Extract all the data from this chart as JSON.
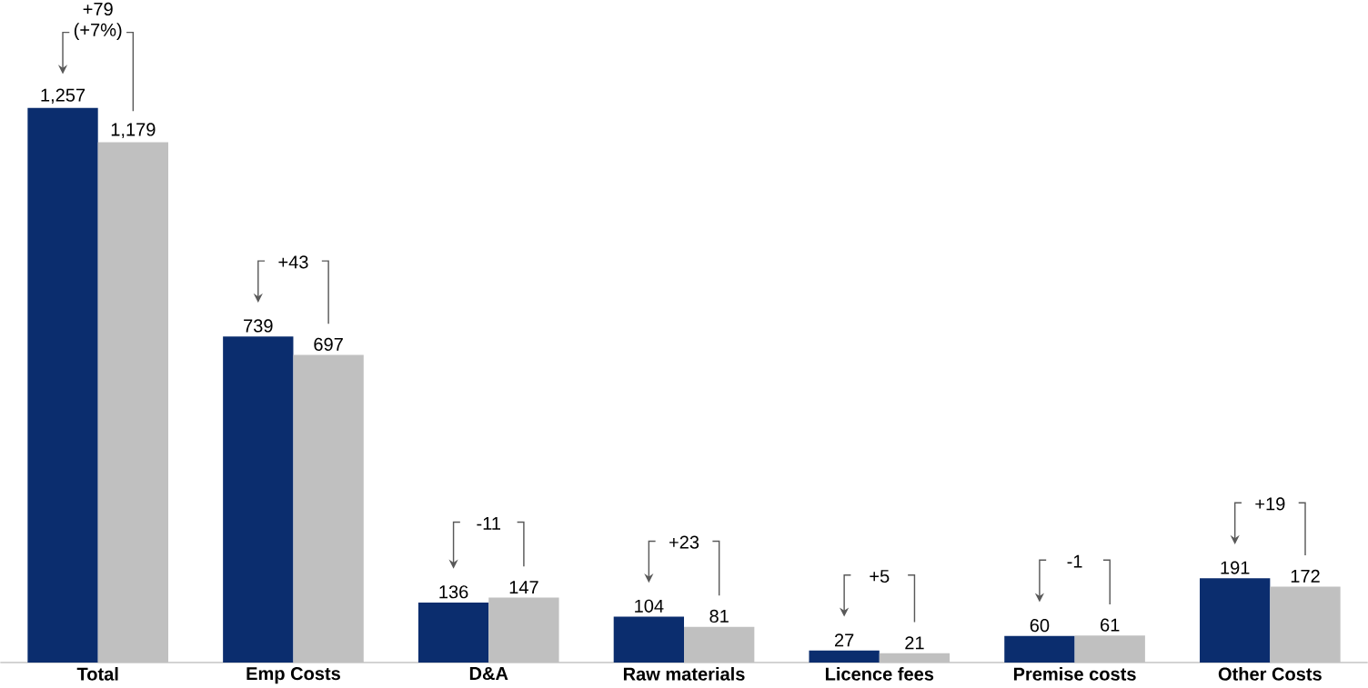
{
  "chart_data": {
    "type": "bar",
    "categories": [
      "Total",
      "Emp Costs",
      "D&A",
      "Raw materials",
      "Licence fees",
      "Premise costs",
      "Other Costs"
    ],
    "series": [
      {
        "color": "#0b2d6e",
        "values": [
          1257,
          739,
          136,
          104,
          27,
          60,
          191
        ],
        "value_labels": [
          "1,257",
          "739",
          "136",
          "104",
          "27",
          "60",
          "191"
        ]
      },
      {
        "color": "#c0c0c0",
        "values": [
          1179,
          697,
          147,
          81,
          21,
          61,
          172
        ],
        "value_labels": [
          "1,179",
          "697",
          "147",
          "81",
          "21",
          "61",
          "172"
        ]
      }
    ],
    "annotations": [
      "+79 (+7%)",
      "+43",
      "-11",
      "+23",
      "+5",
      "-1",
      "+19"
    ]
  }
}
